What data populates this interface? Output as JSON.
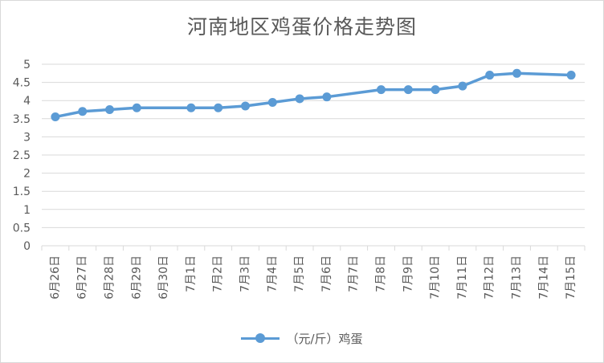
{
  "title": "河南地区鸡蛋价格走势图",
  "legend_label": "（元/斤）鸡蛋",
  "colors": {
    "series": "#5b9bd5",
    "grid": "#d9d9d9",
    "text": "#595959"
  },
  "chart_data": {
    "type": "line",
    "title": "河南地区鸡蛋价格走势图",
    "xlabel": "",
    "ylabel": "",
    "ylim": [
      0,
      5
    ],
    "y_ticks": [
      "0",
      "0.5",
      "1",
      "1.5",
      "2",
      "2.5",
      "3",
      "3.5",
      "4",
      "4.5",
      "5"
    ],
    "grid": true,
    "legend_position": "bottom",
    "categories": [
      "6月26日",
      "6月27日",
      "6月28日",
      "6月29日",
      "6月30日",
      "7月1日",
      "7月2日",
      "7月3日",
      "7月4日",
      "7月5日",
      "7月6日",
      "7月7日",
      "7月8日",
      "7月9日",
      "7月10日",
      "7月11日",
      "7月12日",
      "7月13日",
      "7月14日",
      "7月15日"
    ],
    "series": [
      {
        "name": "（元/斤）鸡蛋",
        "values": [
          3.55,
          3.7,
          3.75,
          3.8,
          null,
          3.8,
          3.8,
          3.85,
          3.95,
          4.05,
          4.1,
          null,
          4.3,
          4.3,
          4.3,
          4.4,
          4.7,
          4.75,
          null,
          4.7
        ]
      }
    ]
  }
}
